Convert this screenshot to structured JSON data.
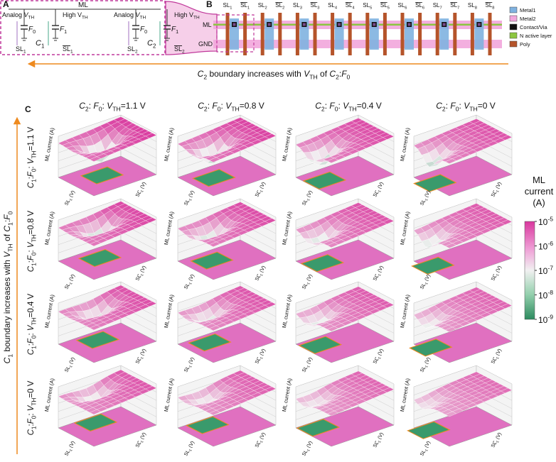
{
  "panel_a": {
    "label": "A",
    "ml": "ML",
    "cells": [
      {
        "analog": [
          "Analog ",
          {
            "text": "V",
            "style": "i"
          },
          {
            "text": "TH",
            "style": "sub"
          }
        ],
        "high": [
          "High V",
          {
            "text": "TH",
            "style": "sub"
          }
        ],
        "f0": [
          {
            "text": "F",
            "style": "i"
          },
          {
            "text": "0",
            "style": "sub"
          }
        ],
        "f1": [
          {
            "text": "F",
            "style": "i"
          },
          {
            "text": "1",
            "style": "sub"
          }
        ],
        "c": [
          {
            "text": "C",
            "style": "i"
          },
          {
            "text": "1",
            "style": "sub"
          }
        ],
        "sl": [
          "SL",
          {
            "text": "1",
            "style": "sub"
          }
        ],
        "slbar": [
          {
            "text": "SL",
            "style": "over"
          },
          {
            "text": "1",
            "style": "sub"
          }
        ]
      },
      {
        "analog": [
          "Analog ",
          {
            "text": "V",
            "style": "i"
          },
          {
            "text": "TH",
            "style": "sub"
          }
        ],
        "high": [
          "High V",
          {
            "text": "TH",
            "style": "sub"
          }
        ],
        "f0": [
          {
            "text": "F",
            "style": "i"
          },
          {
            "text": "0",
            "style": "sub"
          }
        ],
        "f1": [
          {
            "text": "F",
            "style": "i"
          },
          {
            "text": "1",
            "style": "sub"
          }
        ],
        "c": [
          {
            "text": "C",
            "style": "i"
          },
          {
            "text": "2",
            "style": "sub"
          }
        ],
        "sl": [
          "SL",
          {
            "text": "2",
            "style": "sub"
          }
        ],
        "slbar": [
          {
            "text": "SL",
            "style": "over"
          },
          {
            "text": "2",
            "style": "sub"
          }
        ]
      }
    ]
  },
  "panel_b": {
    "label": "B",
    "rows": [
      "ML",
      "GND"
    ],
    "columns": [
      [
        "SL",
        {
          "text": "1",
          "style": "sub"
        }
      ],
      [
        {
          "text": "SL",
          "style": "over"
        },
        {
          "text": "1",
          "style": "sub"
        }
      ],
      [
        "SL",
        {
          "text": "2",
          "style": "sub"
        }
      ],
      [
        {
          "text": "SL",
          "style": "over"
        },
        {
          "text": "2",
          "style": "sub"
        }
      ],
      [
        "SL",
        {
          "text": "3",
          "style": "sub"
        }
      ],
      [
        {
          "text": "SL",
          "style": "over"
        },
        {
          "text": "3",
          "style": "sub"
        }
      ],
      [
        "SL",
        {
          "text": "4",
          "style": "sub"
        }
      ],
      [
        {
          "text": "SL",
          "style": "over"
        },
        {
          "text": "4",
          "style": "sub"
        }
      ],
      [
        "SL",
        {
          "text": "5",
          "style": "sub"
        }
      ],
      [
        {
          "text": "SL",
          "style": "over"
        },
        {
          "text": "5",
          "style": "sub"
        }
      ],
      [
        "SL",
        {
          "text": "6",
          "style": "sub"
        }
      ],
      [
        {
          "text": "SL",
          "style": "over"
        },
        {
          "text": "6",
          "style": "sub"
        }
      ],
      [
        "SL",
        {
          "text": "7",
          "style": "sub"
        }
      ],
      [
        {
          "text": "SL",
          "style": "over"
        },
        {
          "text": "7",
          "style": "sub"
        }
      ],
      [
        "SL",
        {
          "text": "8",
          "style": "sub"
        }
      ],
      [
        {
          "text": "SL",
          "style": "over"
        },
        {
          "text": "8",
          "style": "sub"
        }
      ]
    ],
    "legend": [
      {
        "label": "Metal1",
        "color": "#7fb2e0"
      },
      {
        "label": "Metal2",
        "color": "#f2a6dc"
      },
      {
        "label": "Contact/Via",
        "color": "#111111"
      },
      {
        "label": "N active layer",
        "color": "#8cc63f"
      },
      {
        "label": "Poly",
        "color": "#b5542a"
      }
    ]
  },
  "arrows": {
    "horizontal": [
      {
        "text": "C",
        "style": "i"
      },
      {
        "text": "2",
        "style": "sub"
      },
      " boundary increases with ",
      {
        "text": "V",
        "style": "i"
      },
      {
        "text": "TH",
        "style": "sub"
      },
      " of ",
      {
        "text": "C",
        "style": "i"
      },
      {
        "text": "2",
        "style": "sub"
      },
      ":",
      {
        "text": "F",
        "style": "i"
      },
      {
        "text": "0",
        "style": "sub"
      }
    ],
    "vertical": [
      {
        "text": "C",
        "style": "i"
      },
      {
        "text": "1",
        "style": "sub"
      },
      " boundary increases with ",
      {
        "text": "V",
        "style": "i"
      },
      {
        "text": "TH",
        "style": "sub"
      },
      " of ",
      {
        "text": "C",
        "style": "i"
      },
      {
        "text": "1",
        "style": "sub"
      },
      ":",
      {
        "text": "F",
        "style": "i"
      },
      {
        "text": "0",
        "style": "sub"
      }
    ]
  },
  "panel_c": {
    "label": "C",
    "column_titles": [
      [
        {
          "text": "C",
          "style": "i"
        },
        {
          "text": "2",
          "style": "sub"
        },
        ": ",
        {
          "text": "F",
          "style": "i"
        },
        {
          "text": "0",
          "style": "sub"
        },
        ": ",
        {
          "text": "V",
          "style": "i"
        },
        {
          "text": "TH",
          "style": "sub"
        },
        "=1.1 V"
      ],
      [
        {
          "text": "C",
          "style": "i"
        },
        {
          "text": "2",
          "style": "sub"
        },
        ": ",
        {
          "text": "F",
          "style": "i"
        },
        {
          "text": "0",
          "style": "sub"
        },
        ": ",
        {
          "text": "V",
          "style": "i"
        },
        {
          "text": "TH",
          "style": "sub"
        },
        "=0.8 V"
      ],
      [
        {
          "text": "C",
          "style": "i"
        },
        {
          "text": "2",
          "style": "sub"
        },
        ": ",
        {
          "text": "F",
          "style": "i"
        },
        {
          "text": "0",
          "style": "sub"
        },
        ": ",
        {
          "text": "V",
          "style": "i"
        },
        {
          "text": "TH",
          "style": "sub"
        },
        "=0.4 V"
      ],
      [
        {
          "text": "C",
          "style": "i"
        },
        {
          "text": "2",
          "style": "sub"
        },
        ": ",
        {
          "text": "F",
          "style": "i"
        },
        {
          "text": "0",
          "style": "sub"
        },
        ": ",
        {
          "text": "V",
          "style": "i"
        },
        {
          "text": "TH",
          "style": "sub"
        },
        "=0 V"
      ]
    ],
    "row_titles": [
      [
        {
          "text": "C",
          "style": "i"
        },
        {
          "text": "1",
          "style": "sub"
        },
        ":",
        {
          "text": "F",
          "style": "i"
        },
        {
          "text": "0",
          "style": "sub"
        },
        ": ",
        {
          "text": "V",
          "style": "i"
        },
        {
          "text": "TH",
          "style": "sub"
        },
        "=1.1 V"
      ],
      [
        {
          "text": "C",
          "style": "i"
        },
        {
          "text": "1",
          "style": "sub"
        },
        ":",
        {
          "text": "F",
          "style": "i"
        },
        {
          "text": "0",
          "style": "sub"
        },
        ": ",
        {
          "text": "V",
          "style": "i"
        },
        {
          "text": "TH",
          "style": "sub"
        },
        "=0.8 V"
      ],
      [
        {
          "text": "C",
          "style": "i"
        },
        {
          "text": "1",
          "style": "sub"
        },
        ":",
        {
          "text": "F",
          "style": "i"
        },
        {
          "text": "0",
          "style": "sub"
        },
        ": ",
        {
          "text": "V",
          "style": "i"
        },
        {
          "text": "TH",
          "style": "sub"
        },
        "=0.4 V"
      ],
      [
        {
          "text": "C",
          "style": "i"
        },
        {
          "text": "1",
          "style": "sub"
        },
        ":",
        {
          "text": "F",
          "style": "i"
        },
        {
          "text": "0",
          "style": "sub"
        },
        ": ",
        {
          "text": "V",
          "style": "i"
        },
        {
          "text": "TH",
          "style": "sub"
        },
        "=0 V"
      ]
    ],
    "axis": {
      "z": [
        "ML current (A)"
      ],
      "x": [
        "SL",
        {
          "text": "1",
          "style": "sub"
        },
        " (V)"
      ],
      "y": [
        {
          "text": "SL",
          "style": "over"
        },
        {
          "text": "1",
          "style": "sub"
        },
        " (V)"
      ]
    }
  },
  "colorbar": {
    "title": [
      "ML",
      "current",
      "(A)"
    ],
    "ticks": [
      [
        "10",
        {
          "text": "-5",
          "style": "sup"
        }
      ],
      [
        "10",
        {
          "text": "-6",
          "style": "sup"
        }
      ],
      [
        "10",
        {
          "text": "-7",
          "style": "sup"
        }
      ],
      [
        "10",
        {
          "text": "-8",
          "style": "sup"
        }
      ],
      [
        "10",
        {
          "text": "-9",
          "style": "sup"
        }
      ]
    ]
  }
}
